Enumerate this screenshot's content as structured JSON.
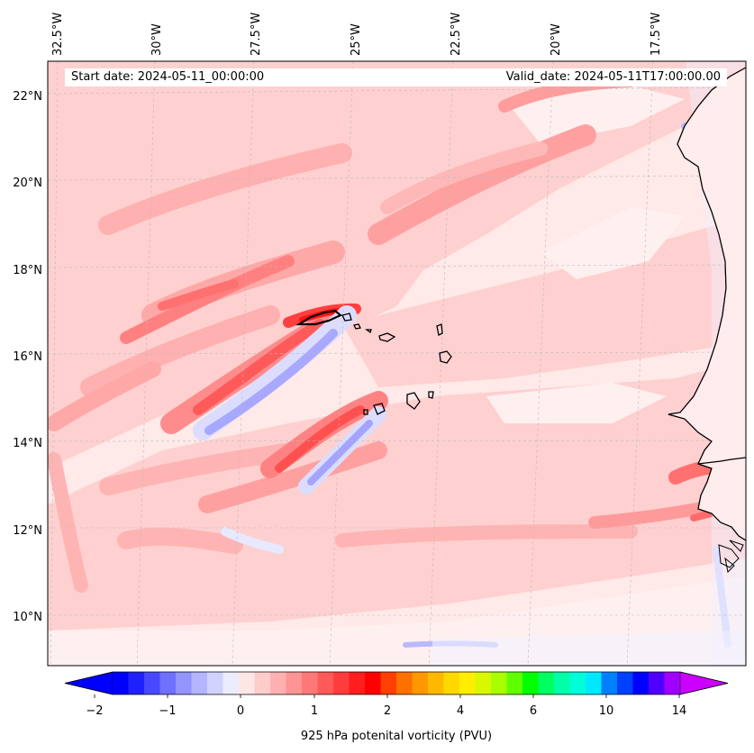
{
  "map": {
    "start_date": "Start date: 2024-05-11_00:00:00",
    "valid_date": "Valid_date: 2024-05-11T17:00:00.00",
    "lon_labels": [
      "32.5°W",
      "30°W",
      "27.5°W",
      "25°W",
      "22.5°W",
      "20°W",
      "17.5°W"
    ],
    "lat_labels": [
      "22°N",
      "20°N",
      "18°N",
      "16°N",
      "14°N",
      "12°N",
      "10°N"
    ]
  },
  "colorbar": {
    "label": "925 hPa potenital vorticity (PVU)",
    "tick_labels": [
      "−2",
      "−1",
      "0",
      "1",
      "2",
      "4",
      "6",
      "10",
      "14"
    ],
    "colors": [
      "#0000ff",
      "#2020ff",
      "#4848ff",
      "#7070ff",
      "#9494ff",
      "#b4b4ff",
      "#d2d2ff",
      "#ececff",
      "#ffe6e6",
      "#ffcccc",
      "#ffb0b0",
      "#ff9494",
      "#ff7878",
      "#ff5a5a",
      "#ff3c3c",
      "#ff1e1e",
      "#ff0000",
      "#ff4000",
      "#ff7000",
      "#ff9800",
      "#ffb800",
      "#ffd800",
      "#ffee00",
      "#d8f800",
      "#a8ff00",
      "#60ff00",
      "#00ff00",
      "#00ff60",
      "#00ffa8",
      "#00ffd8",
      "#00e8ff",
      "#0080ff",
      "#0040ff",
      "#0000ff",
      "#5000ff",
      "#a000ff"
    ],
    "extend_min_color": "#0000ff",
    "extend_max_color": "#cc00ff"
  }
}
